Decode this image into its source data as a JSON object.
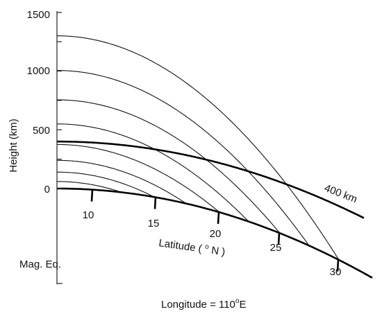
{
  "y_axis": {
    "title": "Height (km)",
    "ticks": [
      {
        "label": "1500",
        "value": 1500
      },
      {
        "label": "1000",
        "value": 1000
      },
      {
        "label": "500",
        "value": 500
      },
      {
        "label": "0",
        "value": 0
      }
    ],
    "bottom_label": "Mag. Eq."
  },
  "x_axis": {
    "caption": {
      "pre": "Longitude = 110",
      "sup": "o",
      "post": "E"
    }
  },
  "latitude": {
    "label": {
      "pre": "Latitude ( ",
      "sup": "o",
      "post": " N )"
    },
    "ticks": [
      {
        "label": "10",
        "value": 10
      },
      {
        "label": "15",
        "value": 15
      },
      {
        "label": "20",
        "value": 20
      },
      {
        "label": "25",
        "value": 25
      },
      {
        "label": "30",
        "value": 30
      }
    ]
  },
  "altitude_line": {
    "label": "400 km",
    "height_km": 400
  },
  "field_lines": {
    "apex_heights_km": [
      1300,
      1005,
      755,
      550,
      375,
      240,
      140,
      60
    ]
  }
}
